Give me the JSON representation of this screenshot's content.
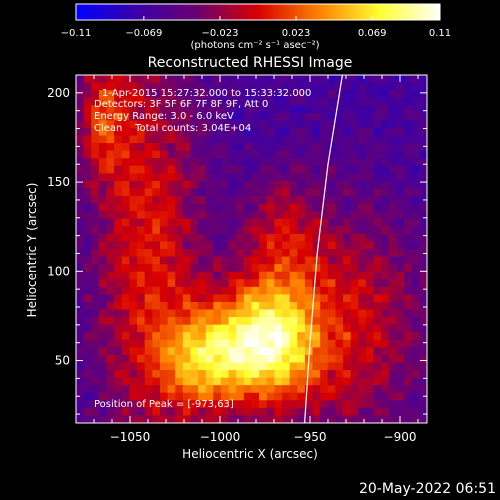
{
  "chart_data": {
    "type": "heatmap",
    "title": "Reconstructed RHESSI Image",
    "xlabel": "Heliocentric X (arcsec)",
    "ylabel": "Heliocentric Y (arcsec)",
    "xlim": [
      -1080,
      -885
    ],
    "ylim": [
      15,
      210
    ],
    "xticks": [
      -1050,
      -1000,
      -950,
      -900
    ],
    "xtick_labels": [
      "−1050",
      "−1000",
      "−950",
      "−900"
    ],
    "yticks": [
      50,
      100,
      150,
      200
    ],
    "ytick_labels": [
      "50",
      "100",
      "150",
      "200"
    ],
    "colorbar": {
      "range": [
        -0.11,
        0.11
      ],
      "ticks": [
        -0.11,
        -0.069,
        -0.023,
        0.023,
        0.069,
        0.11
      ],
      "tick_labels": [
        "−0.11",
        "−0.069",
        "−0.023",
        "0.023",
        "0.069",
        "0.11"
      ],
      "unit_label": "(photons cm⁻² s⁻¹ asec⁻²)",
      "colors": [
        "#0000ff",
        "#3a00a8",
        "#6a0070",
        "#d80000",
        "#ff8000",
        "#ffff30",
        "#ffffff"
      ]
    },
    "annotations": [
      "1-Apr-2015 15:27:32.000 to 15:33:32.000",
      "Detectors: 3F 5F 6F 7F 8F 9F, Att 0",
      "Energy Range: 3.0 - 6.0 keV",
      "Clean    Total counts: 3.04E+04"
    ],
    "peak_label": "Position of Peak = [-973,63]",
    "peak": [
      -973,
      63
    ],
    "limb_curve": [
      [
        -953,
        15
      ],
      [
        -950,
        60
      ],
      [
        -946,
        110
      ],
      [
        -940,
        160
      ],
      [
        -932,
        210
      ]
    ],
    "sources": [
      {
        "x": -975,
        "y": 60,
        "sx": 20,
        "sy": 24,
        "amp": 0.15
      },
      {
        "x": -1010,
        "y": 50,
        "sx": 16,
        "sy": 20,
        "amp": 0.09
      },
      {
        "x": -1040,
        "y": 110,
        "sx": 22,
        "sy": 90,
        "amp": 0.07
      },
      {
        "x": -1065,
        "y": 185,
        "sx": 10,
        "sy": 24,
        "amp": 0.06
      },
      {
        "x": -925,
        "y": 70,
        "sx": 28,
        "sy": 48,
        "amp": 0.06
      },
      {
        "x": -965,
        "y": 120,
        "sx": 16,
        "sy": 26,
        "amp": 0.05
      }
    ]
  },
  "footer": {
    "date": "20-May-2022 06:51"
  }
}
